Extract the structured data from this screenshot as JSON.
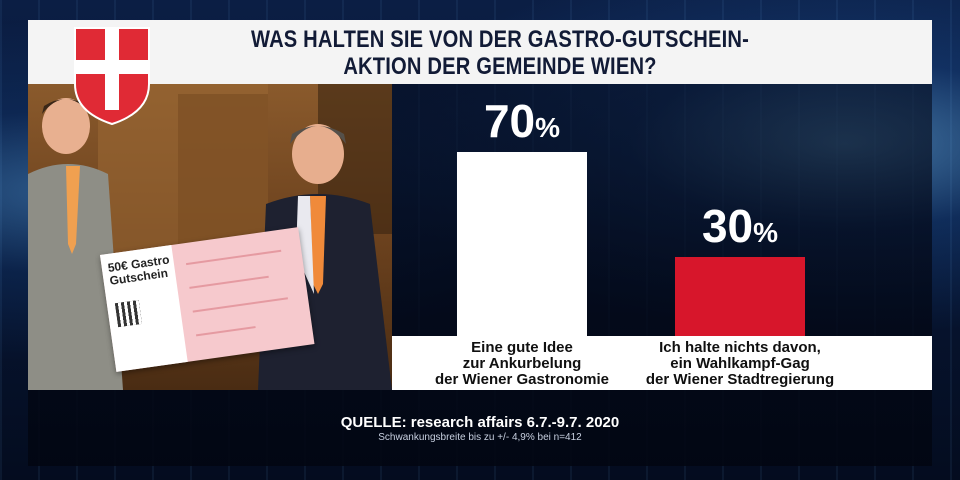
{
  "header": {
    "title_line1": "WAS HALTEN SIE VON DER GASTRO-GUTSCHEIN-",
    "title_line2": "AKTION DER GEMEINDE WIEN?"
  },
  "crest": {
    "icon": "vienna-coat-of-arms-icon",
    "colors": {
      "red": "#e02a35",
      "white": "#ffffff"
    }
  },
  "voucher": {
    "title_line1": "50€ Gastro",
    "title_line2": "Gutschein"
  },
  "chart_data": {
    "type": "bar",
    "title": "WAS HALTEN SIE VON DER GASTRO-GUTSCHEIN-AKTION DER GEMEINDE WIEN?",
    "categories": [
      "Eine gute Idee zur Ankurbelung der Wiener Gastronomie",
      "Ich halte nichts davon, ein Wahlkampf-Gag der Wiener Stadtregierung"
    ],
    "category_lines": [
      [
        "Eine gute Idee",
        "zur Ankurbelung",
        "der Wiener Gastronomie"
      ],
      [
        "Ich halte nichts davon,",
        "ein Wahlkampf-Gag",
        "der Wiener Stadtregierung"
      ]
    ],
    "values": [
      70,
      30
    ],
    "value_labels": [
      "70",
      "30"
    ],
    "unit": "%",
    "colors": [
      "#ffffff",
      "#d7162b"
    ],
    "ylim": [
      0,
      100
    ],
    "grid": false,
    "legend": "none"
  },
  "source": {
    "line1": "QUELLE: research affairs 6.7.-9.7. 2020",
    "line2": "Schwankungsbreite bis zu +/- 4,9% bei n=412"
  }
}
